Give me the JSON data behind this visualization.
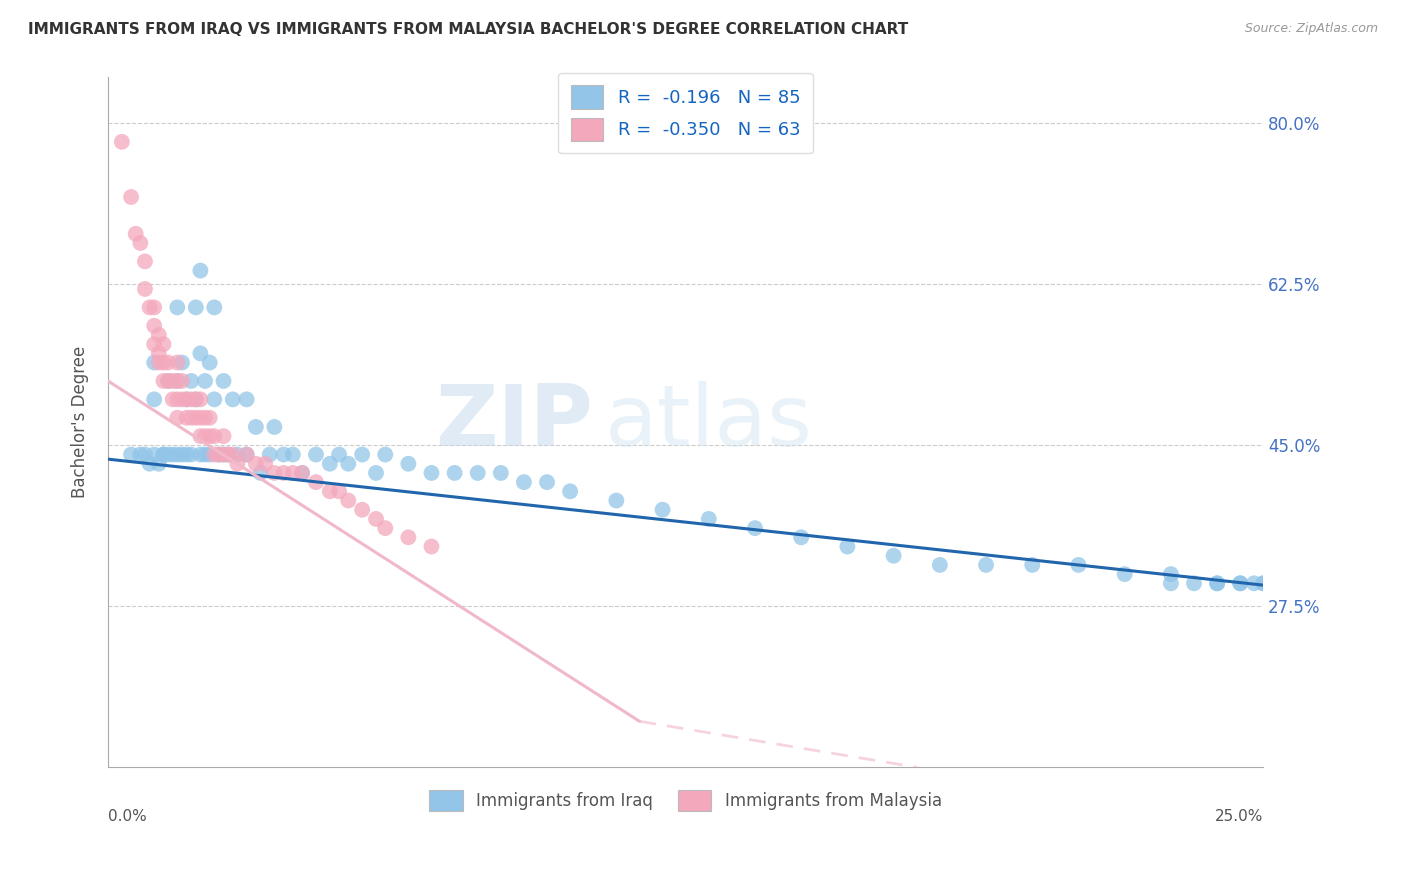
{
  "title": "IMMIGRANTS FROM IRAQ VS IMMIGRANTS FROM MALAYSIA BACHELOR'S DEGREE CORRELATION CHART",
  "source": "Source: ZipAtlas.com",
  "ylabel": "Bachelor's Degree",
  "yaxis_labels": [
    "80.0%",
    "62.5%",
    "45.0%",
    "27.5%"
  ],
  "yaxis_values": [
    0.8,
    0.625,
    0.45,
    0.275
  ],
  "xmin": 0.0,
  "xmax": 0.25,
  "ymin": 0.1,
  "ymax": 0.85,
  "xtick_labels": [
    "0.0%",
    "",
    "",
    "",
    "",
    "25.0%"
  ],
  "legend_iraq": "Immigrants from Iraq",
  "legend_malaysia": "Immigrants from Malaysia",
  "R_iraq": "-0.196",
  "N_iraq": "85",
  "R_malaysia": "-0.350",
  "N_malaysia": "63",
  "color_iraq": "#92C5E8",
  "color_malaysia": "#F4A8BC",
  "trendline_iraq_color": "#2166AC",
  "trendline_malaysia_color": "#F0B8C8",
  "watermark_zip": "ZIP",
  "watermark_atlas": "atlas",
  "iraq_x": [
    0.005,
    0.007,
    0.008,
    0.009,
    0.01,
    0.01,
    0.01,
    0.011,
    0.012,
    0.012,
    0.013,
    0.013,
    0.014,
    0.015,
    0.015,
    0.015,
    0.016,
    0.016,
    0.017,
    0.017,
    0.018,
    0.018,
    0.019,
    0.019,
    0.02,
    0.02,
    0.02,
    0.021,
    0.021,
    0.022,
    0.022,
    0.023,
    0.023,
    0.024,
    0.025,
    0.025,
    0.026,
    0.027,
    0.028,
    0.03,
    0.03,
    0.032,
    0.033,
    0.035,
    0.036,
    0.038,
    0.04,
    0.042,
    0.045,
    0.048,
    0.05,
    0.052,
    0.055,
    0.058,
    0.06,
    0.065,
    0.07,
    0.075,
    0.08,
    0.085,
    0.09,
    0.095,
    0.1,
    0.11,
    0.12,
    0.13,
    0.14,
    0.15,
    0.16,
    0.17,
    0.18,
    0.19,
    0.2,
    0.21,
    0.22,
    0.23,
    0.24,
    0.245,
    0.248,
    0.25,
    0.25,
    0.245,
    0.24,
    0.235,
    0.23
  ],
  "iraq_y": [
    0.44,
    0.44,
    0.44,
    0.43,
    0.5,
    0.54,
    0.44,
    0.43,
    0.44,
    0.44,
    0.52,
    0.44,
    0.44,
    0.6,
    0.52,
    0.44,
    0.54,
    0.44,
    0.5,
    0.44,
    0.52,
    0.44,
    0.6,
    0.5,
    0.64,
    0.55,
    0.44,
    0.52,
    0.44,
    0.54,
    0.44,
    0.6,
    0.5,
    0.44,
    0.52,
    0.44,
    0.44,
    0.5,
    0.44,
    0.5,
    0.44,
    0.47,
    0.42,
    0.44,
    0.47,
    0.44,
    0.44,
    0.42,
    0.44,
    0.43,
    0.44,
    0.43,
    0.44,
    0.42,
    0.44,
    0.43,
    0.42,
    0.42,
    0.42,
    0.42,
    0.41,
    0.41,
    0.4,
    0.39,
    0.38,
    0.37,
    0.36,
    0.35,
    0.34,
    0.33,
    0.32,
    0.32,
    0.32,
    0.32,
    0.31,
    0.31,
    0.3,
    0.3,
    0.3,
    0.3,
    0.3,
    0.3,
    0.3,
    0.3,
    0.3
  ],
  "malaysia_x": [
    0.003,
    0.005,
    0.006,
    0.007,
    0.008,
    0.008,
    0.009,
    0.01,
    0.01,
    0.01,
    0.011,
    0.011,
    0.011,
    0.012,
    0.012,
    0.012,
    0.013,
    0.013,
    0.014,
    0.014,
    0.015,
    0.015,
    0.015,
    0.015,
    0.016,
    0.016,
    0.017,
    0.017,
    0.018,
    0.018,
    0.019,
    0.019,
    0.02,
    0.02,
    0.02,
    0.021,
    0.021,
    0.022,
    0.022,
    0.023,
    0.023,
    0.024,
    0.025,
    0.025,
    0.026,
    0.027,
    0.028,
    0.03,
    0.032,
    0.034,
    0.036,
    0.038,
    0.04,
    0.042,
    0.045,
    0.048,
    0.05,
    0.052,
    0.055,
    0.058,
    0.06,
    0.065,
    0.07
  ],
  "malaysia_y": [
    0.78,
    0.72,
    0.68,
    0.67,
    0.65,
    0.62,
    0.6,
    0.6,
    0.58,
    0.56,
    0.57,
    0.55,
    0.54,
    0.56,
    0.54,
    0.52,
    0.54,
    0.52,
    0.52,
    0.5,
    0.54,
    0.52,
    0.5,
    0.48,
    0.52,
    0.5,
    0.5,
    0.48,
    0.5,
    0.48,
    0.5,
    0.48,
    0.5,
    0.48,
    0.46,
    0.48,
    0.46,
    0.48,
    0.46,
    0.46,
    0.44,
    0.44,
    0.46,
    0.44,
    0.44,
    0.44,
    0.43,
    0.44,
    0.43,
    0.43,
    0.42,
    0.42,
    0.42,
    0.42,
    0.41,
    0.4,
    0.4,
    0.39,
    0.38,
    0.37,
    0.36,
    0.35,
    0.34
  ]
}
